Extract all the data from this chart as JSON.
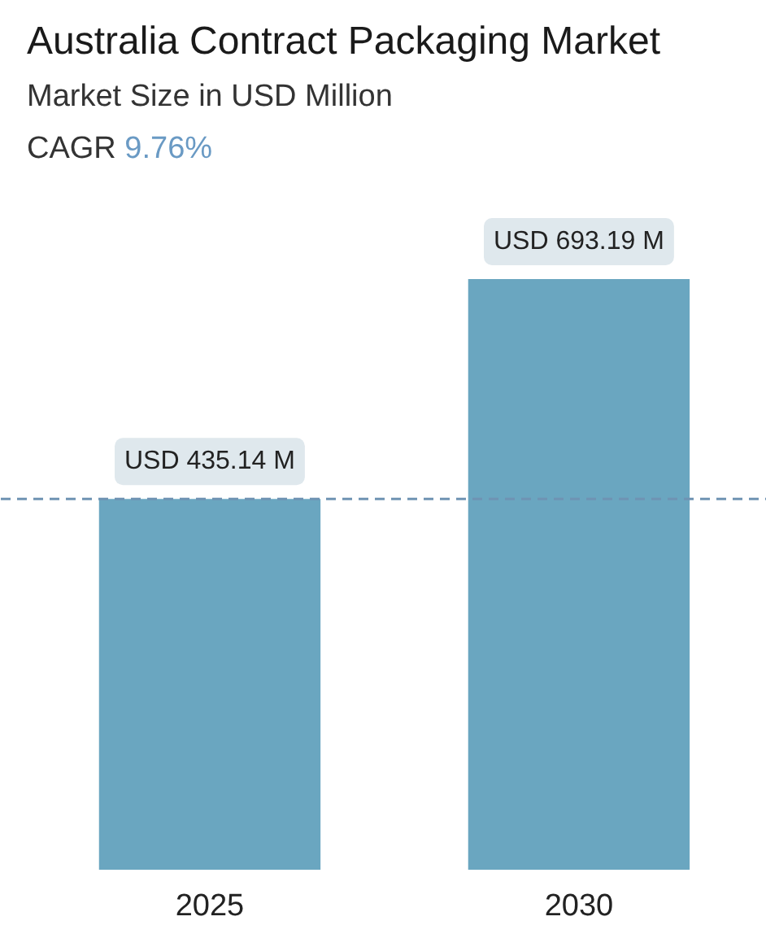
{
  "chart_data": {
    "type": "bar",
    "title": "Australia Contract Packaging Market",
    "subtitle": "Market Size in USD Million",
    "annotations": [
      "CAGR 9.76%"
    ],
    "categories": [
      "2025",
      "2030"
    ],
    "values": [
      435.14,
      693.19
    ],
    "value_labels": [
      "USD 435.14 M",
      "USD 693.19 M"
    ],
    "color": "#6aa6c0",
    "ref_lines": [
      {
        "axis": "y",
        "value": 435.14,
        "color": "#6f93b3",
        "line_style": "dashed"
      }
    ]
  }
}
